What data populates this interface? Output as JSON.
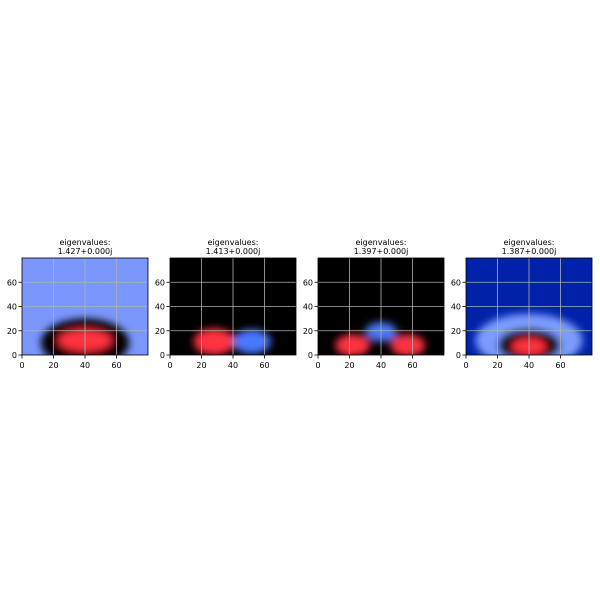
{
  "chart_data": [
    {
      "type": "heatmap",
      "title_line1": "eigenvalues:",
      "title_line2": "1.427+0.000j",
      "xlim": [
        0,
        80
      ],
      "ylim": [
        0,
        80
      ],
      "xticks": [
        0,
        20,
        40,
        60
      ],
      "yticks": [
        0,
        20,
        40,
        60
      ],
      "grid": true,
      "colormap": "bwr-dark",
      "background_color": "#7b96ff",
      "blobs": [
        {
          "cx": 40,
          "cy": 10,
          "rx": 28,
          "ry": 20,
          "color": "#000000"
        },
        {
          "cx": 40,
          "cy": 12,
          "rx": 17,
          "ry": 9,
          "color": "#ff3040"
        }
      ]
    },
    {
      "type": "heatmap",
      "title_line1": "eigenvalues:",
      "title_line2": "1.413+0.000j",
      "xlim": [
        0,
        80
      ],
      "ylim": [
        0,
        80
      ],
      "xticks": [
        0,
        20,
        40,
        60
      ],
      "yticks": [
        0,
        20,
        40,
        60
      ],
      "grid": true,
      "colormap": "bwr-dark",
      "background_color": "#000000",
      "blobs": [
        {
          "cx": 28,
          "cy": 11,
          "rx": 13,
          "ry": 11,
          "color": "#ff3040"
        },
        {
          "cx": 52,
          "cy": 11,
          "rx": 12,
          "ry": 10,
          "color": "#4a78ff"
        }
      ]
    },
    {
      "type": "heatmap",
      "title_line1": "eigenvalues:",
      "title_line2": "1.397+0.000j",
      "xlim": [
        0,
        80
      ],
      "ylim": [
        0,
        80
      ],
      "xticks": [
        0,
        20,
        40,
        60
      ],
      "yticks": [
        0,
        20,
        40,
        60
      ],
      "grid": true,
      "colormap": "bwr-dark",
      "background_color": "#000000",
      "blobs": [
        {
          "cx": 22,
          "cy": 8,
          "rx": 11,
          "ry": 9,
          "color": "#ff3040"
        },
        {
          "cx": 40,
          "cy": 19,
          "rx": 10,
          "ry": 8,
          "color": "#4a78ff"
        },
        {
          "cx": 57,
          "cy": 8,
          "rx": 11,
          "ry": 9,
          "color": "#ff3040"
        }
      ]
    },
    {
      "type": "heatmap",
      "title_line1": "eigenvalues:",
      "title_line2": "1.387+0.000j",
      "xlim": [
        0,
        80
      ],
      "ylim": [
        0,
        80
      ],
      "xticks": [
        0,
        20,
        40,
        60
      ],
      "yticks": [
        0,
        20,
        40,
        60
      ],
      "grid": true,
      "colormap": "bwr-dark",
      "background_color": "#0022a8",
      "blobs": [
        {
          "cx": 40,
          "cy": 12,
          "rx": 34,
          "ry": 22,
          "color": "#7d9cff"
        },
        {
          "cx": 40,
          "cy": 8,
          "rx": 20,
          "ry": 14,
          "color": "#000000"
        },
        {
          "cx": 40,
          "cy": 7,
          "rx": 11,
          "ry": 7,
          "color": "#ff3040"
        }
      ]
    }
  ]
}
